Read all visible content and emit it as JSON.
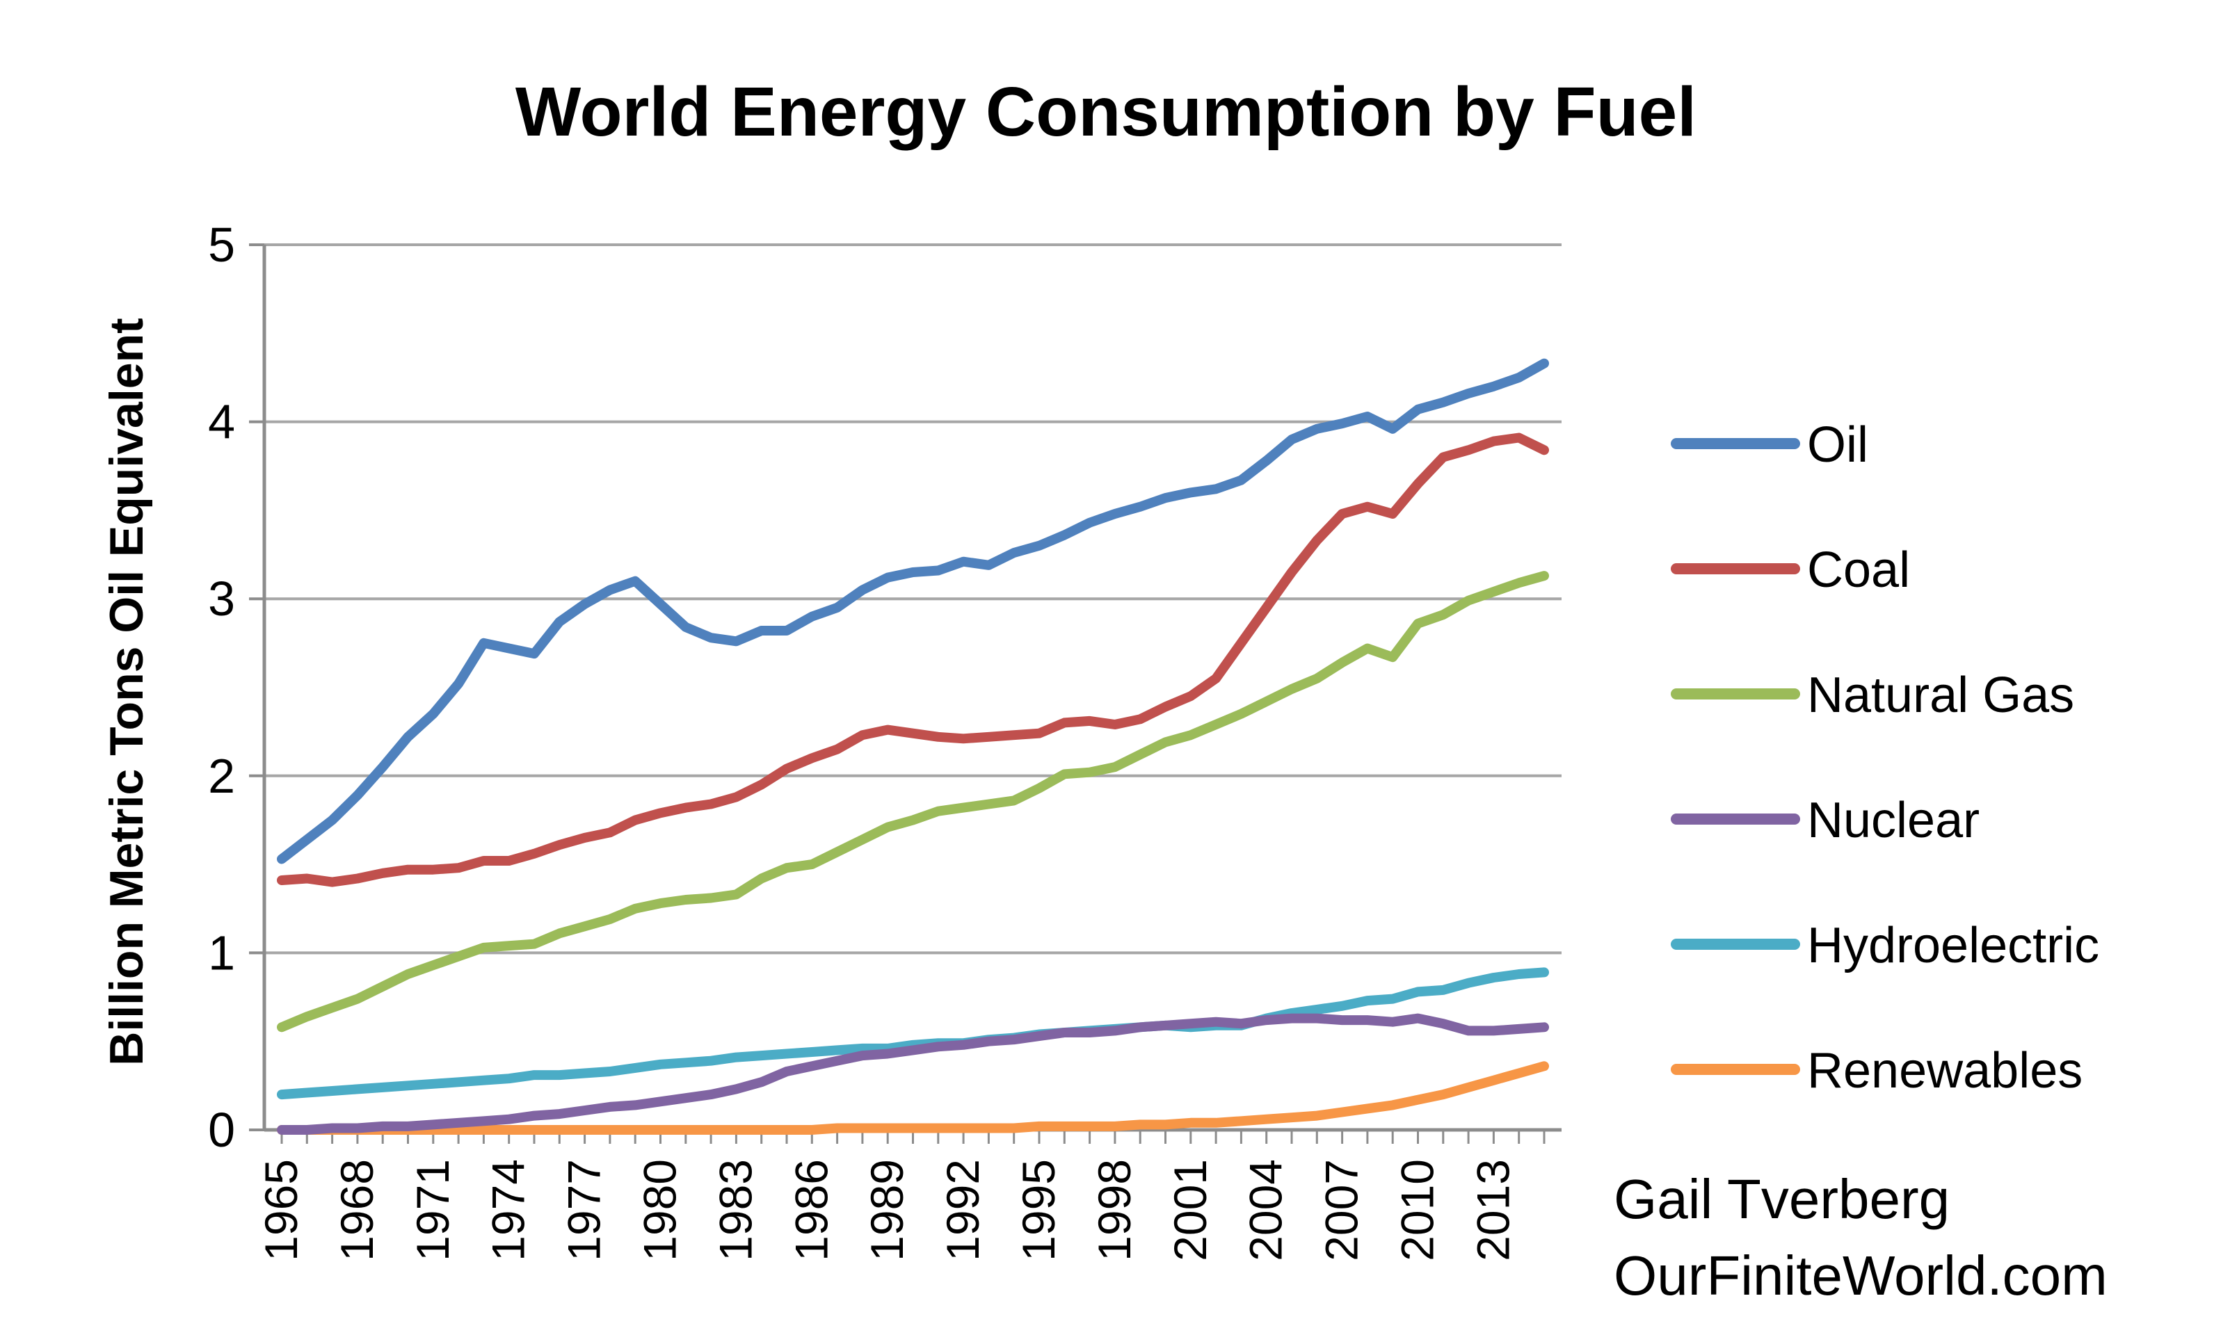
{
  "chart_data": {
    "type": "line",
    "title": "World Energy Consumption by Fuel",
    "xlabel": "",
    "ylabel": "Billion Metric Tons Oil Equivalent",
    "ylim": [
      0,
      5
    ],
    "yticks": [
      0,
      1,
      2,
      3,
      4,
      5
    ],
    "grid": true,
    "legend_position": "right",
    "x": [
      1965,
      1966,
      1967,
      1968,
      1969,
      1970,
      1971,
      1972,
      1973,
      1974,
      1975,
      1976,
      1977,
      1978,
      1979,
      1980,
      1981,
      1982,
      1983,
      1984,
      1985,
      1986,
      1987,
      1988,
      1989,
      1990,
      1991,
      1992,
      1993,
      1994,
      1995,
      1996,
      1997,
      1998,
      1999,
      2000,
      2001,
      2002,
      2003,
      2004,
      2005,
      2006,
      2007,
      2008,
      2009,
      2010,
      2011,
      2012,
      2013,
      2014,
      2015
    ],
    "xtick_labels": [
      "1965",
      "1968",
      "1971",
      "1974",
      "1977",
      "1980",
      "1983",
      "1986",
      "1989",
      "1992",
      "1995",
      "1998",
      "2001",
      "2004",
      "2007",
      "2010",
      "2013"
    ],
    "series": [
      {
        "name": "Oil",
        "color": "#4f81bd",
        "values": [
          1.53,
          1.64,
          1.75,
          1.89,
          2.05,
          2.22,
          2.35,
          2.52,
          2.75,
          2.72,
          2.69,
          2.87,
          2.97,
          3.05,
          3.1,
          2.97,
          2.84,
          2.78,
          2.76,
          2.82,
          2.82,
          2.9,
          2.95,
          3.05,
          3.12,
          3.15,
          3.16,
          3.21,
          3.19,
          3.26,
          3.3,
          3.36,
          3.43,
          3.48,
          3.52,
          3.57,
          3.6,
          3.62,
          3.67,
          3.78,
          3.9,
          3.96,
          3.99,
          4.03,
          3.96,
          4.07,
          4.11,
          4.16,
          4.2,
          4.25,
          4.33
        ]
      },
      {
        "name": "Coal",
        "color": "#c0504d",
        "values": [
          1.41,
          1.42,
          1.4,
          1.42,
          1.45,
          1.47,
          1.47,
          1.48,
          1.52,
          1.52,
          1.56,
          1.61,
          1.65,
          1.68,
          1.75,
          1.79,
          1.82,
          1.84,
          1.88,
          1.95,
          2.04,
          2.1,
          2.15,
          2.23,
          2.26,
          2.24,
          2.22,
          2.21,
          2.22,
          2.23,
          2.24,
          2.3,
          2.31,
          2.29,
          2.32,
          2.39,
          2.45,
          2.55,
          2.75,
          2.95,
          3.15,
          3.33,
          3.48,
          3.52,
          3.48,
          3.65,
          3.8,
          3.84,
          3.89,
          3.91,
          3.84
        ]
      },
      {
        "name": "Natural Gas",
        "color": "#9bbb59",
        "values": [
          0.58,
          0.64,
          0.69,
          0.74,
          0.81,
          0.88,
          0.93,
          0.98,
          1.03,
          1.04,
          1.05,
          1.11,
          1.15,
          1.19,
          1.25,
          1.28,
          1.3,
          1.31,
          1.33,
          1.42,
          1.48,
          1.5,
          1.57,
          1.64,
          1.71,
          1.75,
          1.8,
          1.82,
          1.84,
          1.86,
          1.93,
          2.01,
          2.02,
          2.05,
          2.12,
          2.19,
          2.23,
          2.29,
          2.35,
          2.42,
          2.49,
          2.55,
          2.64,
          2.72,
          2.67,
          2.86,
          2.91,
          2.99,
          3.04,
          3.09,
          3.13
        ]
      },
      {
        "name": "Nuclear",
        "color": "#8064a2",
        "values": [
          0.0,
          0.0,
          0.01,
          0.01,
          0.02,
          0.02,
          0.03,
          0.04,
          0.05,
          0.06,
          0.08,
          0.09,
          0.11,
          0.13,
          0.14,
          0.16,
          0.18,
          0.2,
          0.23,
          0.27,
          0.33,
          0.36,
          0.39,
          0.42,
          0.43,
          0.45,
          0.47,
          0.48,
          0.5,
          0.51,
          0.53,
          0.55,
          0.55,
          0.56,
          0.58,
          0.59,
          0.6,
          0.61,
          0.6,
          0.62,
          0.63,
          0.63,
          0.62,
          0.62,
          0.61,
          0.63,
          0.6,
          0.56,
          0.56,
          0.57,
          0.58
        ]
      },
      {
        "name": "Hydroelectric",
        "color": "#4bacc6",
        "values": [
          0.2,
          0.21,
          0.22,
          0.23,
          0.24,
          0.25,
          0.26,
          0.27,
          0.28,
          0.29,
          0.31,
          0.31,
          0.32,
          0.33,
          0.35,
          0.37,
          0.38,
          0.39,
          0.41,
          0.42,
          0.43,
          0.44,
          0.45,
          0.46,
          0.46,
          0.48,
          0.49,
          0.49,
          0.51,
          0.52,
          0.54,
          0.55,
          0.56,
          0.57,
          0.58,
          0.59,
          0.58,
          0.59,
          0.59,
          0.63,
          0.66,
          0.68,
          0.7,
          0.73,
          0.74,
          0.78,
          0.79,
          0.83,
          0.86,
          0.88,
          0.89
        ]
      },
      {
        "name": "Renewables",
        "color": "#f79646",
        "values": [
          0.0,
          0.0,
          0.0,
          0.0,
          0.0,
          0.0,
          0.0,
          0.0,
          0.0,
          0.0,
          0.0,
          0.0,
          0.0,
          0.0,
          0.0,
          0.0,
          0.0,
          0.0,
          0.0,
          0.0,
          0.0,
          0.0,
          0.01,
          0.01,
          0.01,
          0.01,
          0.01,
          0.01,
          0.01,
          0.01,
          0.02,
          0.02,
          0.02,
          0.02,
          0.03,
          0.03,
          0.04,
          0.04,
          0.05,
          0.06,
          0.07,
          0.08,
          0.1,
          0.12,
          0.14,
          0.17,
          0.2,
          0.24,
          0.28,
          0.32,
          0.36
        ]
      }
    ]
  },
  "credit": {
    "author": "Gail Tverberg",
    "site": "OurFiniteWorld.com"
  }
}
